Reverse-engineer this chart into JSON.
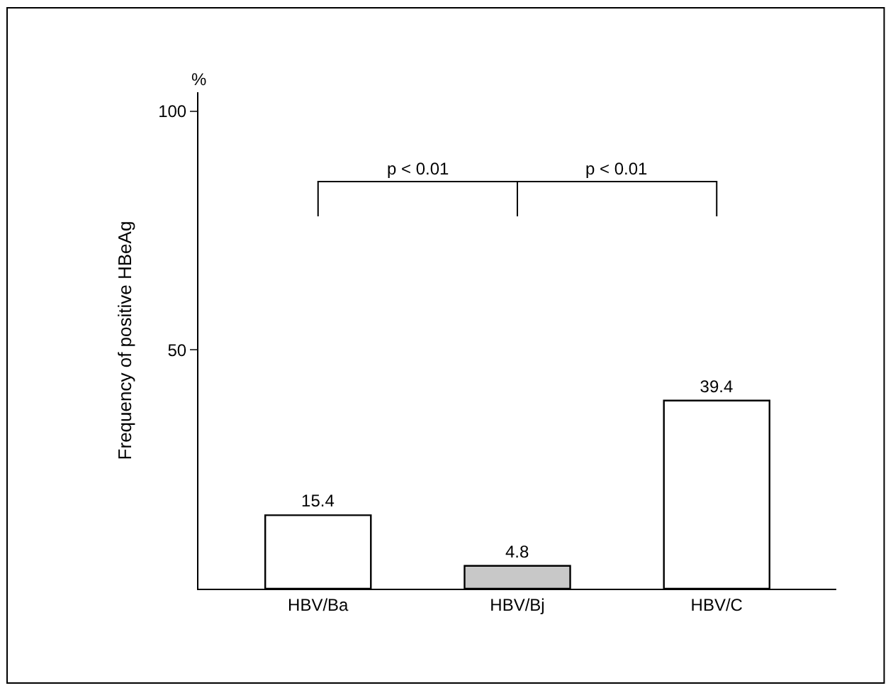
{
  "chart_data": {
    "type": "bar",
    "ylabel": "Frequency of positive HBeAg",
    "categories": [
      "HBV/Ba",
      "HBV/Bj",
      "HBV/C"
    ],
    "values": [
      15.4,
      4.8,
      39.4
    ],
    "colors": [
      "#ffffff",
      "#c8c8c8",
      "#ffffff"
    ],
    "ylim": [
      0,
      104
    ],
    "yticks": [
      50,
      100
    ],
    "data_labels": true,
    "legend": false,
    "annotations": [
      "%",
      "p < 0.01",
      "p < 0.01"
    ]
  }
}
